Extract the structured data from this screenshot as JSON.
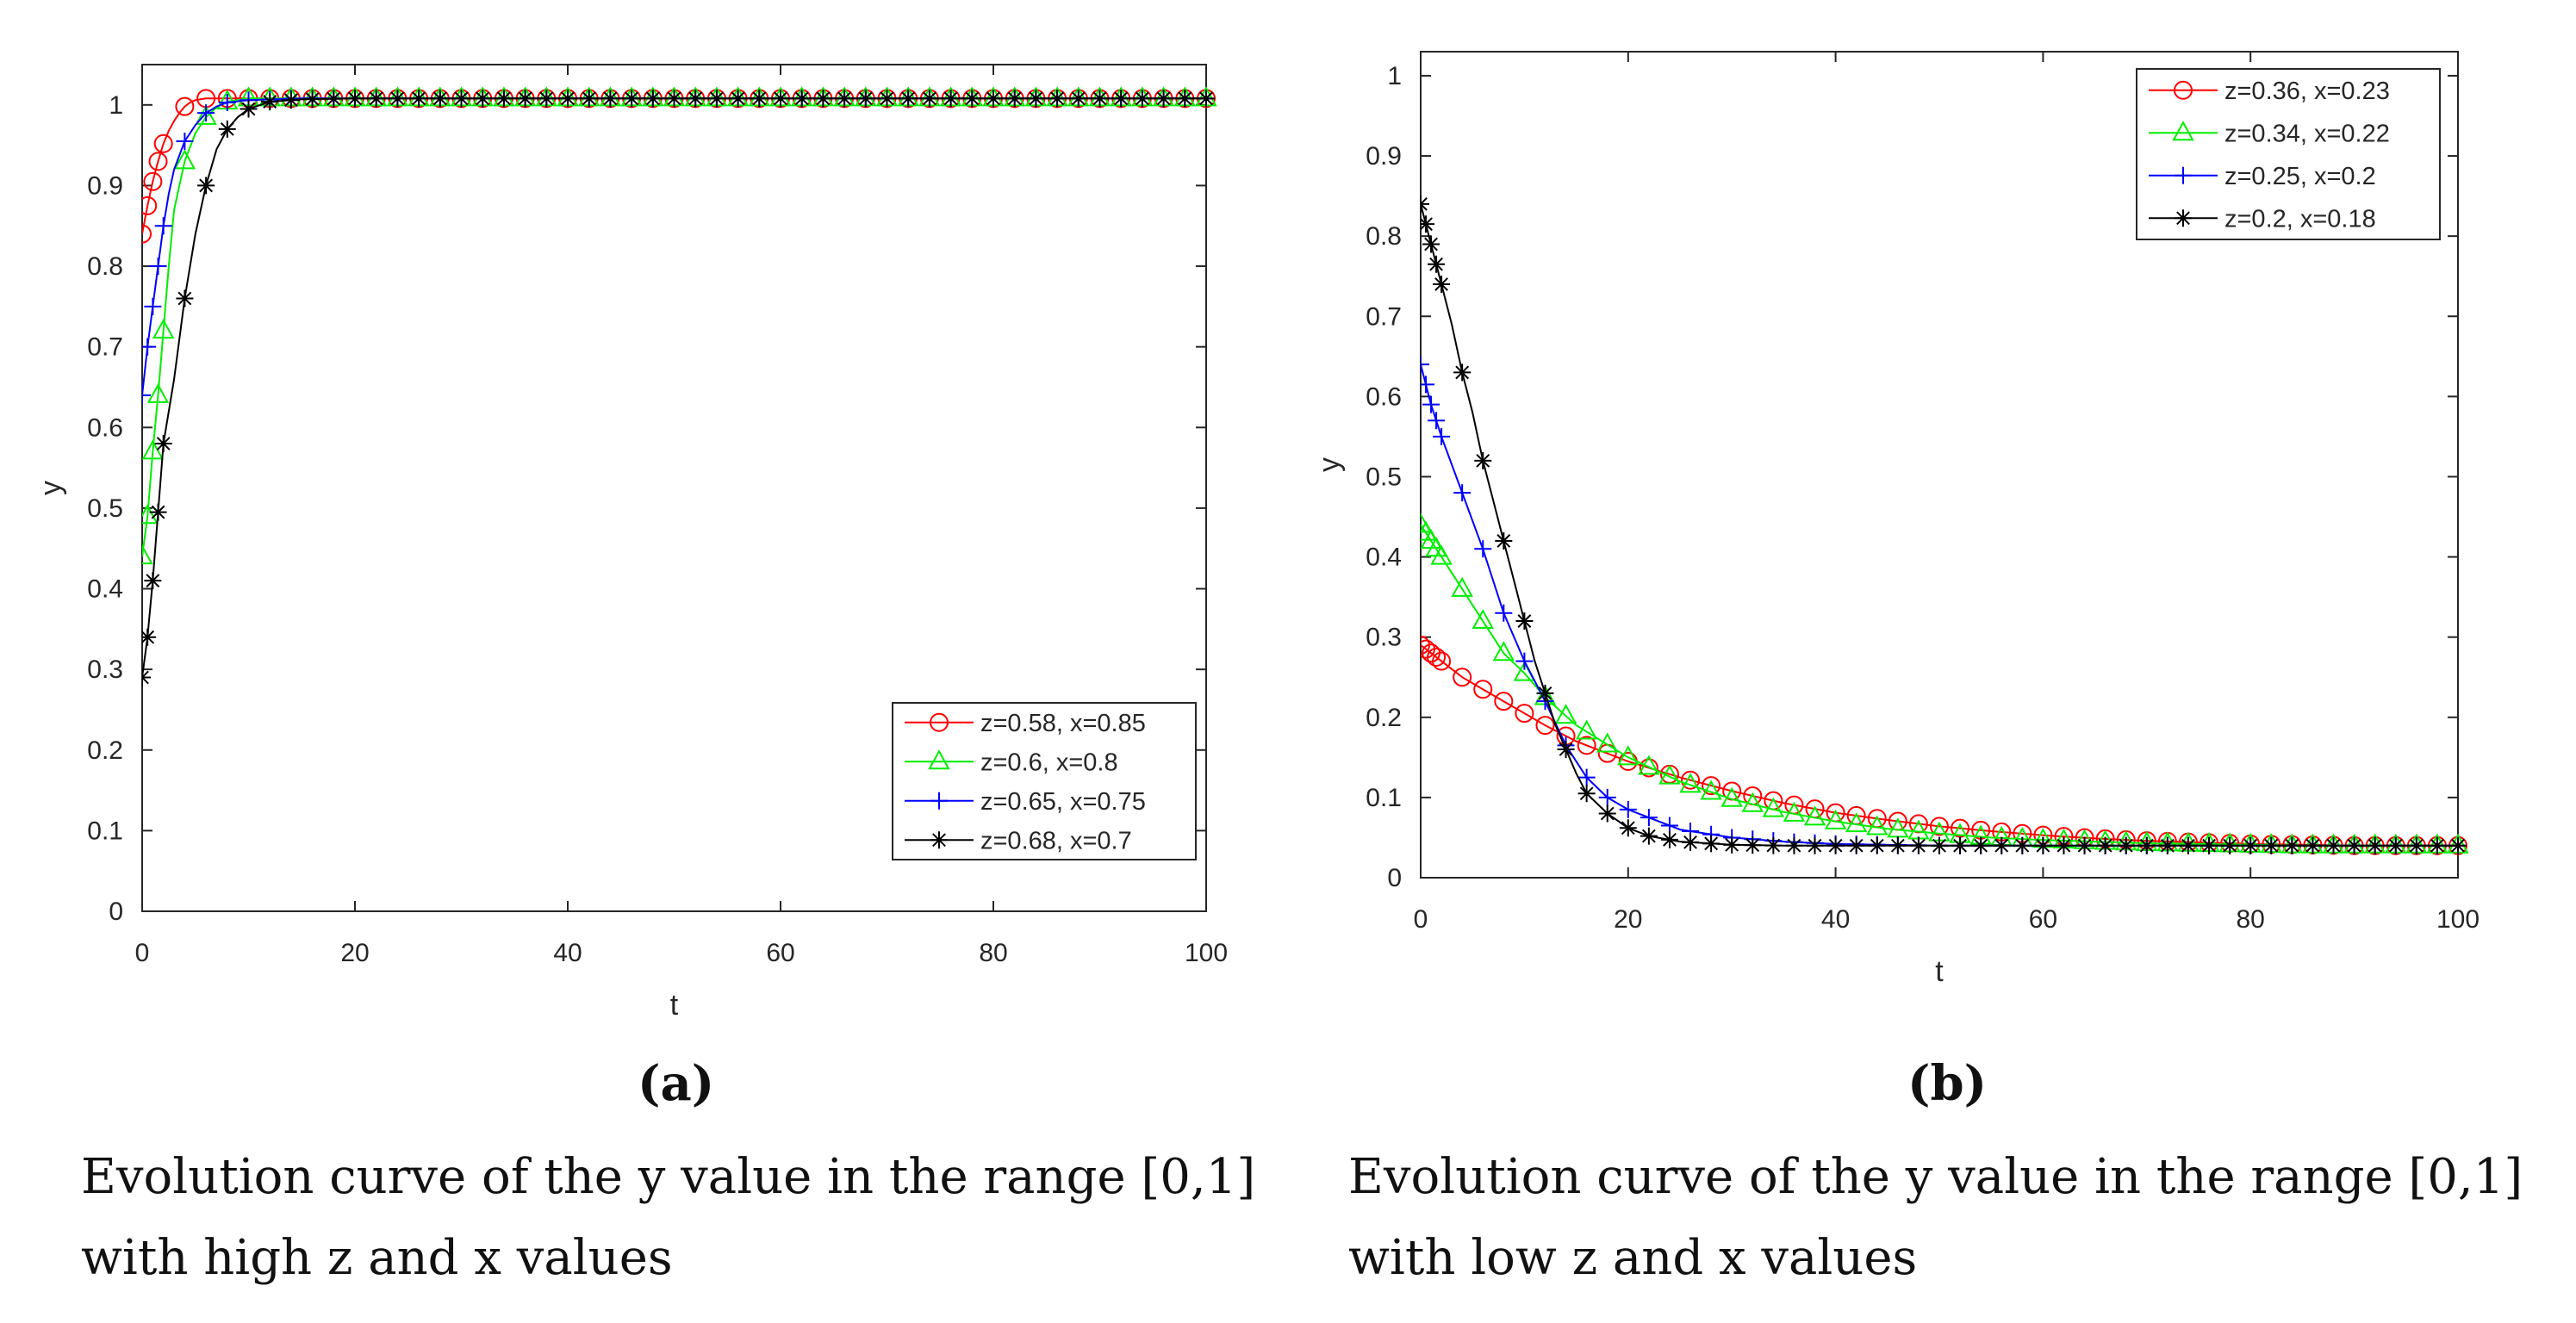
{
  "chart_data": [
    {
      "type": "line",
      "panel_label": "(a)",
      "caption": [
        "Evolution curve of the y value in the range [0,1]",
        "with high z and x values"
      ],
      "xlabel": "t",
      "ylabel": "y",
      "xlim": [
        0,
        100
      ],
      "ylim": [
        0,
        1.05
      ],
      "xticks": [
        0,
        20,
        40,
        60,
        80,
        100
      ],
      "yticks": [
        0,
        0.1,
        0.2,
        0.3,
        0.4,
        0.5,
        0.6,
        0.7,
        0.8,
        0.9,
        1
      ],
      "grid": false,
      "legend_position": "bottom-right",
      "series": [
        {
          "name": "z=0.58, x=0.85",
          "color": "#ff0000",
          "marker": "circle",
          "x": [
            0,
            0.5,
            1,
            1.5,
            2,
            2.5,
            3,
            3.5,
            4,
            4.5,
            5,
            6,
            8,
            10,
            15,
            20,
            30,
            40,
            50,
            60,
            70,
            80,
            90,
            100
          ],
          "y": [
            0.84,
            0.875,
            0.905,
            0.93,
            0.952,
            0.968,
            0.98,
            0.99,
            0.998,
            1.003,
            1.006,
            1.008,
            1.008,
            1.008,
            1.008,
            1.008,
            1.008,
            1.008,
            1.008,
            1.008,
            1.008,
            1.008,
            1.008,
            1.008
          ]
        },
        {
          "name": "z=0.6, x=0.8",
          "color": "#00ee00",
          "marker": "triangle",
          "x": [
            0,
            0.5,
            1,
            1.5,
            2,
            2.5,
            3,
            4,
            5,
            6,
            7,
            8,
            10,
            15,
            20,
            30,
            40,
            50,
            60,
            70,
            80,
            90,
            100
          ],
          "y": [
            0.44,
            0.49,
            0.57,
            0.64,
            0.72,
            0.8,
            0.87,
            0.93,
            0.965,
            0.985,
            0.997,
            1.004,
            1.008,
            1.008,
            1.008,
            1.008,
            1.008,
            1.008,
            1.008,
            1.008,
            1.008,
            1.008,
            1.008
          ]
        },
        {
          "name": "z=0.65, x=0.75",
          "color": "#0000ff",
          "marker": "plus",
          "x": [
            0,
            0.5,
            1,
            1.5,
            2,
            2.5,
            3,
            4,
            5,
            6,
            7,
            8,
            10,
            15,
            20,
            30,
            40,
            50,
            60,
            70,
            80,
            90,
            100
          ],
          "y": [
            0.64,
            0.7,
            0.75,
            0.8,
            0.85,
            0.89,
            0.92,
            0.955,
            0.975,
            0.99,
            0.998,
            1.003,
            1.006,
            1.008,
            1.008,
            1.008,
            1.008,
            1.008,
            1.008,
            1.008,
            1.008,
            1.008,
            1.008
          ]
        },
        {
          "name": "z=0.68, x=0.7",
          "color": "#000000",
          "marker": "asterisk",
          "x": [
            0,
            0.5,
            1,
            2,
            3,
            4,
            5,
            6,
            7,
            8,
            9,
            10,
            12,
            15,
            20,
            30,
            40,
            50,
            60,
            70,
            80,
            90,
            100
          ],
          "y": [
            0.29,
            0.34,
            0.41,
            0.58,
            0.66,
            0.76,
            0.84,
            0.9,
            0.945,
            0.97,
            0.985,
            0.995,
            1.004,
            1.007,
            1.008,
            1.008,
            1.008,
            1.008,
            1.008,
            1.008,
            1.008,
            1.008,
            1.008
          ]
        }
      ]
    },
    {
      "type": "line",
      "panel_label": "(b)",
      "caption": [
        "Evolution curve of the y value in the range [0,1]",
        "with low z and x values"
      ],
      "xlabel": "t",
      "ylabel": "y",
      "xlim": [
        0,
        100
      ],
      "ylim": [
        0,
        1.03
      ],
      "xticks": [
        0,
        20,
        40,
        60,
        80,
        100
      ],
      "yticks": [
        0,
        0.1,
        0.2,
        0.3,
        0.4,
        0.5,
        0.6,
        0.7,
        0.8,
        0.9,
        1
      ],
      "grid": false,
      "legend_position": "top-right",
      "series": [
        {
          "name": "z=0.36, x=0.23",
          "color": "#ff0000",
          "marker": "circle",
          "x": [
            0,
            2,
            4,
            6,
            8,
            10,
            12,
            15,
            20,
            25,
            30,
            35,
            40,
            45,
            50,
            55,
            60,
            65,
            70,
            75,
            80,
            85,
            90,
            95,
            100
          ],
          "y": [
            0.29,
            0.27,
            0.25,
            0.235,
            0.22,
            0.205,
            0.19,
            0.17,
            0.145,
            0.125,
            0.108,
            0.093,
            0.081,
            0.072,
            0.064,
            0.058,
            0.053,
            0.049,
            0.046,
            0.044,
            0.042,
            0.041,
            0.04,
            0.04,
            0.04
          ]
        },
        {
          "name": "z=0.34, x=0.22",
          "color": "#00ee00",
          "marker": "triangle",
          "x": [
            0,
            2,
            4,
            6,
            8,
            10,
            12,
            15,
            20,
            25,
            30,
            35,
            40,
            45,
            50,
            55,
            60,
            65,
            70,
            75,
            80,
            85,
            90,
            95,
            100
          ],
          "y": [
            0.44,
            0.4,
            0.36,
            0.32,
            0.28,
            0.255,
            0.225,
            0.19,
            0.15,
            0.12,
            0.098,
            0.082,
            0.07,
            0.061,
            0.055,
            0.05,
            0.047,
            0.045,
            0.043,
            0.042,
            0.041,
            0.04,
            0.04,
            0.04,
            0.04
          ]
        },
        {
          "name": "z=0.25, x=0.2",
          "color": "#0000ff",
          "marker": "plus",
          "x": [
            0,
            1,
            2,
            4,
            6,
            8,
            10,
            12,
            14,
            16,
            18,
            20,
            25,
            30,
            35,
            40,
            50,
            60,
            70,
            80,
            90,
            100
          ],
          "y": [
            0.64,
            0.59,
            0.55,
            0.48,
            0.41,
            0.33,
            0.27,
            0.22,
            0.165,
            0.125,
            0.1,
            0.085,
            0.06,
            0.05,
            0.045,
            0.042,
            0.04,
            0.04,
            0.04,
            0.04,
            0.04,
            0.04
          ]
        },
        {
          "name": "z=0.2, x=0.18",
          "color": "#000000",
          "marker": "asterisk",
          "x": [
            0,
            1,
            2,
            3,
            4,
            5,
            6,
            7,
            8,
            9,
            10,
            11,
            12,
            13,
            14,
            15,
            16,
            18,
            20,
            22,
            25,
            30,
            35,
            40,
            50,
            60,
            70,
            80,
            90,
            100
          ],
          "y": [
            0.84,
            0.79,
            0.74,
            0.69,
            0.63,
            0.58,
            0.52,
            0.47,
            0.42,
            0.37,
            0.32,
            0.27,
            0.23,
            0.19,
            0.16,
            0.13,
            0.105,
            0.08,
            0.062,
            0.052,
            0.045,
            0.041,
            0.04,
            0.04,
            0.04,
            0.04,
            0.04,
            0.04,
            0.04,
            0.04
          ]
        }
      ]
    }
  ]
}
